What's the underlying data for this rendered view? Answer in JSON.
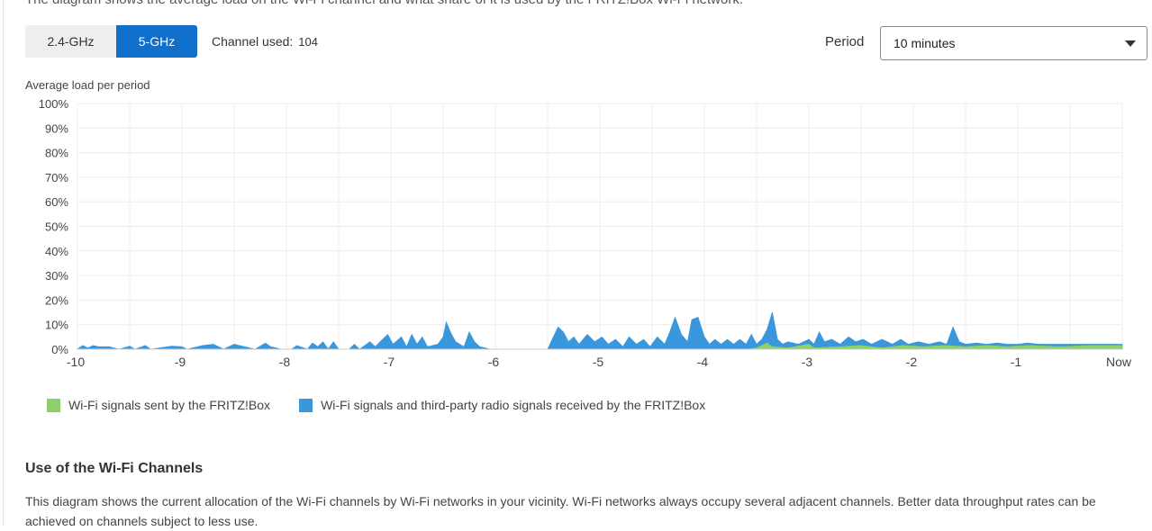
{
  "intro_text": "The diagram shows the average load on the Wi-Fi channel and what share of it is used by the FRITZ!Box Wi-Fi network.",
  "band_toggle": {
    "options": [
      "2.4-GHz",
      "5-GHz"
    ],
    "selected": "5-GHz"
  },
  "channel": {
    "label": "Channel used:",
    "value": "104"
  },
  "period": {
    "label": "Period",
    "value": "10 minutes"
  },
  "colors": {
    "accent": "#0f6fcb",
    "sent": "#8cd06a",
    "received": "#3a97dc"
  },
  "chart_data": {
    "type": "area",
    "title": "Average load per period",
    "ylabel": "Average load per period",
    "ylim": [
      0,
      100
    ],
    "xlim": [
      -10,
      0
    ],
    "grid": true,
    "y_ticks": [
      "100%",
      "90%",
      "80%",
      "70%",
      "60%",
      "50%",
      "40%",
      "30%",
      "20%",
      "10%",
      "0%"
    ],
    "x_ticks": [
      {
        "v": -10,
        "label": "-10"
      },
      {
        "v": -9,
        "label": "-9"
      },
      {
        "v": -8,
        "label": "-8"
      },
      {
        "v": -7,
        "label": "-7"
      },
      {
        "v": -6,
        "label": "-6"
      },
      {
        "v": -5,
        "label": "-5"
      },
      {
        "v": -4,
        "label": "-4"
      },
      {
        "v": -3,
        "label": "-3"
      },
      {
        "v": -2,
        "label": "-2"
      },
      {
        "v": -1,
        "label": "-1"
      },
      {
        "v": 0,
        "label": "Now"
      }
    ],
    "legend_placement": "bottom",
    "series": [
      {
        "name": "Wi-Fi signals and third-party radio signals received by the FRITZ!Box",
        "color": "#3a97dc",
        "points": [
          [
            -10.0,
            0
          ],
          [
            -9.95,
            1.5
          ],
          [
            -9.9,
            0.5
          ],
          [
            -9.85,
            1.5
          ],
          [
            -9.8,
            1
          ],
          [
            -9.7,
            1
          ],
          [
            -9.6,
            0
          ],
          [
            -9.5,
            1.2
          ],
          [
            -9.45,
            0
          ],
          [
            -9.35,
            1.5
          ],
          [
            -9.3,
            0
          ],
          [
            -9.1,
            1.2
          ],
          [
            -9.0,
            1
          ],
          [
            -8.95,
            0
          ],
          [
            -8.85,
            1
          ],
          [
            -8.8,
            1.5
          ],
          [
            -8.7,
            2
          ],
          [
            -8.6,
            0
          ],
          [
            -8.5,
            2
          ],
          [
            -8.4,
            1
          ],
          [
            -8.3,
            0
          ],
          [
            -8.2,
            2.5
          ],
          [
            -8.15,
            1
          ],
          [
            -8.05,
            0
          ],
          [
            -7.95,
            0
          ],
          [
            -7.9,
            1.5
          ],
          [
            -7.8,
            0
          ],
          [
            -7.75,
            2.5
          ],
          [
            -7.7,
            1
          ],
          [
            -7.65,
            3
          ],
          [
            -7.6,
            0
          ],
          [
            -7.55,
            3
          ],
          [
            -7.5,
            0
          ],
          [
            -7.4,
            0
          ],
          [
            -7.35,
            2
          ],
          [
            -7.3,
            0
          ],
          [
            -7.2,
            3
          ],
          [
            -7.15,
            1
          ],
          [
            -7.08,
            4
          ],
          [
            -7.03,
            6
          ],
          [
            -6.98,
            2
          ],
          [
            -6.9,
            5
          ],
          [
            -6.85,
            1
          ],
          [
            -6.8,
            6
          ],
          [
            -6.75,
            2
          ],
          [
            -6.7,
            5
          ],
          [
            -6.65,
            1
          ],
          [
            -6.55,
            2
          ],
          [
            -6.5,
            5
          ],
          [
            -6.47,
            11
          ],
          [
            -6.42,
            6
          ],
          [
            -6.38,
            3
          ],
          [
            -6.3,
            1
          ],
          [
            -6.25,
            7
          ],
          [
            -6.2,
            3
          ],
          [
            -6.15,
            1
          ],
          [
            -6.05,
            0
          ],
          [
            -5.9,
            0
          ],
          [
            -5.7,
            0
          ],
          [
            -5.5,
            0
          ],
          [
            -5.4,
            9
          ],
          [
            -5.35,
            7
          ],
          [
            -5.3,
            3
          ],
          [
            -5.25,
            5
          ],
          [
            -5.2,
            2
          ],
          [
            -5.12,
            6
          ],
          [
            -5.05,
            3
          ],
          [
            -4.98,
            5
          ],
          [
            -4.92,
            2
          ],
          [
            -4.85,
            4
          ],
          [
            -4.78,
            1
          ],
          [
            -4.72,
            5
          ],
          [
            -4.65,
            2
          ],
          [
            -4.58,
            4
          ],
          [
            -4.52,
            1
          ],
          [
            -4.45,
            5
          ],
          [
            -4.38,
            2
          ],
          [
            -4.33,
            7
          ],
          [
            -4.28,
            13
          ],
          [
            -4.22,
            6
          ],
          [
            -4.16,
            3
          ],
          [
            -4.12,
            12
          ],
          [
            -4.06,
            13
          ],
          [
            -4.0,
            5
          ],
          [
            -3.95,
            2
          ],
          [
            -3.9,
            4
          ],
          [
            -3.84,
            2
          ],
          [
            -3.78,
            4
          ],
          [
            -3.72,
            2
          ],
          [
            -3.66,
            4
          ],
          [
            -3.6,
            2
          ],
          [
            -3.55,
            6
          ],
          [
            -3.5,
            2
          ],
          [
            -3.45,
            4
          ],
          [
            -3.4,
            8
          ],
          [
            -3.35,
            15
          ],
          [
            -3.3,
            4
          ],
          [
            -3.25,
            2
          ],
          [
            -3.2,
            3
          ],
          [
            -3.1,
            2
          ],
          [
            -3.0,
            4
          ],
          [
            -2.95,
            2
          ],
          [
            -2.9,
            7
          ],
          [
            -2.85,
            3
          ],
          [
            -2.78,
            4
          ],
          [
            -2.7,
            2
          ],
          [
            -2.62,
            5
          ],
          [
            -2.55,
            3
          ],
          [
            -2.48,
            4
          ],
          [
            -2.4,
            2
          ],
          [
            -2.3,
            4
          ],
          [
            -2.2,
            2
          ],
          [
            -2.12,
            4
          ],
          [
            -2.05,
            2
          ],
          [
            -1.95,
            3
          ],
          [
            -1.85,
            2
          ],
          [
            -1.75,
            3
          ],
          [
            -1.68,
            2
          ],
          [
            -1.62,
            9
          ],
          [
            -1.56,
            3
          ],
          [
            -1.5,
            2
          ],
          [
            -1.4,
            2.5
          ],
          [
            -1.3,
            2
          ],
          [
            -1.2,
            2.5
          ],
          [
            -1.1,
            2
          ],
          [
            -1.0,
            2
          ],
          [
            -0.9,
            2.5
          ],
          [
            -0.8,
            2
          ],
          [
            -0.6,
            2
          ],
          [
            -0.4,
            2
          ],
          [
            -0.2,
            2
          ],
          [
            0,
            2
          ]
        ]
      },
      {
        "name": "Wi-Fi signals sent by the FRITZ!Box",
        "color": "#8cd06a",
        "points": [
          [
            -10.0,
            0
          ],
          [
            -3.6,
            0
          ],
          [
            -3.5,
            0.5
          ],
          [
            -3.4,
            2.5
          ],
          [
            -3.35,
            1
          ],
          [
            -3.2,
            0.5
          ],
          [
            -3.0,
            2
          ],
          [
            -2.95,
            0.5
          ],
          [
            -2.7,
            1
          ],
          [
            -2.5,
            1.5
          ],
          [
            -2.3,
            0.5
          ],
          [
            -2.1,
            1.5
          ],
          [
            -1.9,
            1
          ],
          [
            -1.7,
            1.5
          ],
          [
            -1.5,
            1
          ],
          [
            -1.3,
            1.5
          ],
          [
            -1.1,
            1
          ],
          [
            -0.9,
            1.5
          ],
          [
            -0.6,
            1
          ],
          [
            -0.3,
            1.5
          ],
          [
            0,
            1.5
          ]
        ]
      }
    ]
  },
  "legend": {
    "sent": "Wi-Fi signals sent by the FRITZ!Box",
    "received": "Wi-Fi signals and third-party radio signals received by the FRITZ!Box"
  },
  "section": {
    "title": "Use of the Wi-Fi Channels",
    "text": "This diagram shows the current allocation of the Wi-Fi channels by Wi-Fi networks in your vicinity. Wi-Fi networks always occupy several adjacent channels. Better data throughput rates can be achieved on channels subject to less use."
  }
}
